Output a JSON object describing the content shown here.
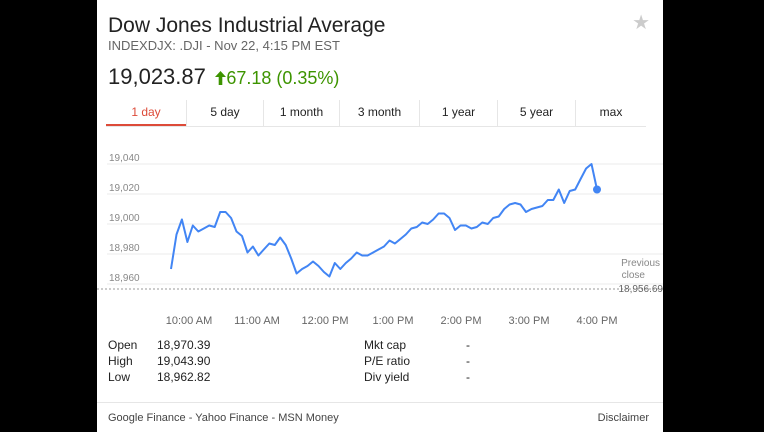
{
  "header": {
    "title": "Dow Jones Industrial Average",
    "subtitle": "INDEXDJX: .DJI - Nov 22, 4:15 PM EST",
    "favorite_icon": "star-icon"
  },
  "quote": {
    "price": "19,023.87",
    "change": "67.18 (0.35%)",
    "direction_icon": "arrow-up-icon",
    "change_color": "#3d9400"
  },
  "tabs": [
    {
      "label": "1 day",
      "active": true
    },
    {
      "label": "5 day",
      "active": false
    },
    {
      "label": "1 month",
      "active": false
    },
    {
      "label": "3 month",
      "active": false
    },
    {
      "label": "1 year",
      "active": false
    },
    {
      "label": "5 year",
      "active": false
    },
    {
      "label": "max",
      "active": false
    }
  ],
  "chart_data": {
    "type": "line",
    "ylim": [
      18950,
      19050
    ],
    "y_ticks": [
      "19,040",
      "19,020",
      "19,000",
      "18,980",
      "18,960"
    ],
    "x_ticks": [
      "10:00 AM",
      "11:00 AM",
      "12:00 PM",
      "1:00 PM",
      "2:00 PM",
      "3:00 PM",
      "4:00 PM"
    ],
    "line_color": "#4285f4",
    "previous_close": {
      "label_line1": "Previous",
      "label_line2": "close",
      "value": "18,956.69",
      "y": 18956.69
    },
    "series": [
      {
        "x": [
          "9:30 AM",
          "9:35 AM",
          "9:40 AM",
          "9:45 AM",
          "9:50 AM",
          "9:55 AM",
          "10:00 AM",
          "10:05 AM",
          "10:10 AM",
          "10:15 AM",
          "10:20 AM",
          "10:25 AM",
          "10:30 AM",
          "10:35 AM",
          "10:40 AM",
          "10:45 AM",
          "10:50 AM",
          "10:55 AM",
          "11:00 AM",
          "11:05 AM",
          "11:10 AM",
          "11:15 AM",
          "11:20 AM",
          "11:25 AM",
          "11:30 AM",
          "11:35 AM",
          "11:40 AM",
          "11:45 AM",
          "11:50 AM",
          "11:55 AM",
          "12:00 PM",
          "12:05 PM",
          "12:10 PM",
          "12:15 PM",
          "12:20 PM",
          "12:25 PM",
          "12:30 PM",
          "12:35 PM",
          "12:40 PM",
          "12:45 PM",
          "12:50 PM",
          "12:55 PM",
          "1:00 PM",
          "1:05 PM",
          "1:10 PM",
          "1:15 PM",
          "1:20 PM",
          "1:25 PM",
          "1:30 PM",
          "1:35 PM",
          "1:40 PM",
          "1:45 PM",
          "1:50 PM",
          "1:55 PM",
          "2:00 PM",
          "2:05 PM",
          "2:10 PM",
          "2:15 PM",
          "2:20 PM",
          "2:25 PM",
          "2:30 PM",
          "2:35 PM",
          "2:40 PM",
          "2:45 PM",
          "2:50 PM",
          "2:55 PM",
          "3:00 PM",
          "3:05 PM",
          "3:10 PM",
          "3:15 PM",
          "3:20 PM",
          "3:25 PM",
          "3:30 PM",
          "3:35 PM",
          "3:40 PM",
          "3:45 PM",
          "3:50 PM",
          "3:55 PM",
          "4:00 PM"
        ],
        "values": [
          18970,
          18993,
          19003,
          18988,
          18999,
          18995,
          18997,
          18999,
          18998,
          19008,
          19008,
          19004,
          18995,
          18992,
          18981,
          18985,
          18979,
          18983,
          18987,
          18986,
          18991,
          18986,
          18977,
          18967,
          18970,
          18972,
          18975,
          18972,
          18968,
          18965,
          18974,
          18970,
          18974,
          18977,
          18981,
          18979,
          18979,
          18981,
          18983,
          18985,
          18989,
          18987,
          18990,
          18993,
          18997,
          18998,
          19001,
          19000,
          19003,
          19007,
          19007,
          19004,
          18996,
          18999,
          18999,
          18997,
          18998,
          19001,
          19000,
          19004,
          19005,
          19010,
          19013,
          19014,
          19013,
          19008,
          19010,
          19011,
          19012,
          19016,
          19016,
          19023,
          19014,
          19022,
          19023,
          19030,
          19037,
          19040,
          19023
        ]
      }
    ]
  },
  "stats": {
    "left": [
      {
        "label": "Open",
        "value": "18,970.39"
      },
      {
        "label": "High",
        "value": "19,043.90"
      },
      {
        "label": "Low",
        "value": "18,962.82"
      }
    ],
    "right": [
      {
        "label": "Mkt cap",
        "value": "-"
      },
      {
        "label": "P/E ratio",
        "value": "-"
      },
      {
        "label": "Div yield",
        "value": "-"
      }
    ]
  },
  "footer": {
    "sources": "Google Finance - Yahoo Finance - MSN Money",
    "disclaimer": "Disclaimer"
  }
}
